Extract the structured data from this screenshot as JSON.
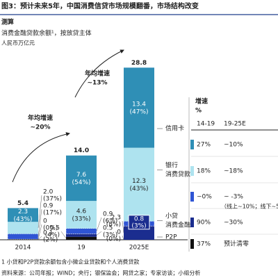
{
  "header": {
    "title": "图3：预计未来5年，中国消费信贷市场规模翻番，市场结构改变"
  },
  "chart_data": {
    "type": "bar",
    "stacked": true,
    "subtitle": [
      "测算",
      "消费金融贷款余额¹，按放贷主体",
      "人民币万亿元"
    ],
    "categories": [
      "2014",
      "19",
      "2025E"
    ],
    "totals": [
      5.4,
      14.0,
      28.8
    ],
    "total_labels": [
      "5.4",
      "14.0",
      "28.8"
    ],
    "series": [
      {
        "color": "#2f8fb6",
        "values": [
          2.3,
          7.6,
          13.4
        ],
        "value_labels": [
          "2.3",
          "7.6",
          "13.4"
        ],
        "share_labels": [
          "(43%)",
          "(54%)",
          "(47%)"
        ]
      },
      {
        "color": "#aee3ef",
        "values": [
          2.0,
          4.6,
          12.3
        ],
        "value_labels": [
          "2.0",
          "4.6",
          "12.3"
        ],
        "share_labels": [
          "(37%)",
          "(33%)",
          "(43%)"
        ]
      },
      {
        "color": "#2f55d4",
        "values": [
          0.9,
          0.9,
          0.8
        ],
        "value_labels": [
          "0.9",
          "0.9",
          "0.8"
        ],
        "share_labels": [
          "(17%)",
          "(6%)",
          "(3%)"
        ]
      },
      {
        "color": "#1b2d8f",
        "values": [
          0,
          0.5,
          2.3
        ],
        "value_labels": [
          "0",
          "0.5",
          "2.3"
        ],
        "share_labels": [
          "(0%)",
          "(3%)",
          "(8%)"
        ]
      },
      {
        "color": "#111111",
        "values": [
          0.1,
          0.5,
          0
        ],
        "value_labels": [
          "0.1",
          "0.5",
          "0"
        ],
        "share_labels": [
          "(2%)",
          "(4%)",
          "(0%)"
        ]
      }
    ],
    "legend": [
      [
        "信用卡"
      ],
      [
        "银行",
        "消费贷款"
      ],
      [
        "小贷",
        "消费金融"
      ],
      [
        "P2P"
      ]
    ],
    "annotations": [
      [
        "年均增速",
        "~20%"
      ],
      [
        "年均增速",
        "~13%"
      ]
    ]
  },
  "growth_table": {
    "header": [
      "增速",
      "%"
    ],
    "columns": [
      "14-19",
      "19-25E"
    ],
    "rows": [
      [
        "27%",
        "~10%"
      ],
      [
        "18%",
        "~18%"
      ],
      [
        "~0%",
        "~ -3%"
      ],
      [
        "90%",
        "~30%"
      ],
      [
        "37%",
        "预计清零"
      ]
    ],
    "row_colors": [
      "#2f8fb6",
      "#aee3ef",
      "#2f55d4",
      "#1b2d8f",
      "#111111"
    ],
    "note": "（线上~10%；线下~5%"
  },
  "notes": [
    "1 小贷和P2P贷款余额包含小微企业贷款和个人消费贷款",
    "资料来源：公司年报；WIND；央行；银保监会；网贷之家；专家访谈；小组分析"
  ]
}
